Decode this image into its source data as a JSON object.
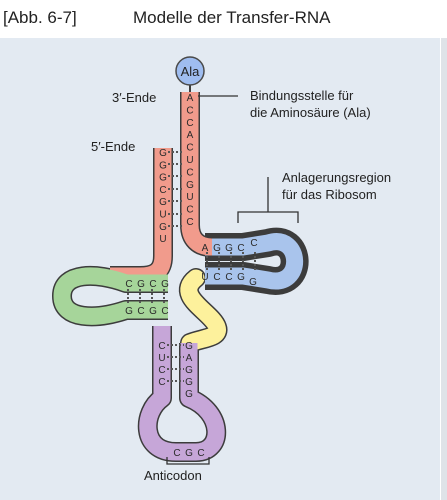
{
  "header": {
    "figure_ref": "[Abb. 6-7]",
    "title": "Modelle der Transfer-RNA"
  },
  "labels": {
    "three_end": "3′-Ende",
    "five_end": "5′-Ende",
    "binding_1": "Bindungsstelle für",
    "binding_2": "die Aminosäure (Ala)",
    "ribosome_1": "Anlagerungsregion",
    "ribosome_2": "für das Ribosom",
    "anticodon": "Anticodon",
    "amino_acid": "Ala"
  },
  "sequences": {
    "acceptor_3prime": [
      "A",
      "C",
      "C",
      "A",
      "C",
      "U",
      "C",
      "G",
      "U",
      "C",
      "C"
    ],
    "acceptor_5prime": [
      "G",
      "G",
      "G",
      "C",
      "G",
      "U",
      "G",
      "U"
    ],
    "t_arm_top": [
      "A",
      "G",
      "G",
      "C",
      "C"
    ],
    "t_arm_bottom": [
      "U",
      "C",
      "C",
      "G",
      "G"
    ],
    "d_arm_top": [
      "C",
      "G",
      "C",
      "G"
    ],
    "d_arm_bottom": [
      "G",
      "C",
      "G",
      "C"
    ],
    "anticodon_left": [
      "C",
      "U",
      "C",
      "C"
    ],
    "anticodon_right": [
      "G",
      "A",
      "G",
      "G",
      "G"
    ],
    "anticodon_bases": [
      "C",
      "G",
      "C"
    ]
  },
  "colors": {
    "acceptor_stem": "#f19b8c",
    "d_arm": "#a6d59a",
    "t_arm": "#a9c4ec",
    "variable_loop": "#fdf19c",
    "anticodon_arm": "#c6a6d8",
    "amino_acid_circle": "#9fbdf0"
  }
}
